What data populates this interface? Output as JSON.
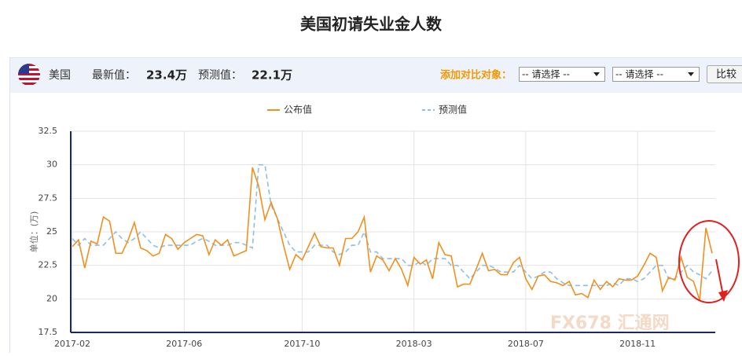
{
  "header": {
    "country": "美国",
    "latest_label": "最新值：",
    "latest_value": "23.4万",
    "forecast_label": "预测值：",
    "forecast_value": "22.1万",
    "compare_label": "添加对比对象：",
    "select_1": "-- 请选择 --",
    "select_2": "-- 请选择 --",
    "button": "比较"
  },
  "watermark": "FX678 汇通网",
  "chart_data": {
    "type": "line",
    "title": "美国初请失业金人数",
    "y_label": "单位：(万)",
    "categories": [
      "2017-02",
      null,
      null,
      null,
      null,
      null,
      null,
      null,
      null,
      null,
      null,
      null,
      null,
      null,
      null,
      null,
      null,
      null,
      "2017-06",
      null,
      null,
      null,
      null,
      null,
      null,
      null,
      null,
      null,
      null,
      null,
      null,
      null,
      null,
      null,
      null,
      null,
      null,
      "2017-10",
      null,
      null,
      null,
      null,
      null,
      null,
      null,
      null,
      null,
      null,
      null,
      null,
      null,
      null,
      null,
      null,
      null,
      "2018-03",
      null,
      null,
      null,
      null,
      null,
      null,
      null,
      null,
      null,
      null,
      null,
      null,
      null,
      null,
      null,
      null,
      null,
      "2018-07",
      null,
      null,
      null,
      null,
      null,
      null,
      null,
      null,
      null,
      null,
      null,
      null,
      null,
      null,
      null,
      null,
      null,
      "2018-11",
      null,
      null,
      null,
      null,
      null,
      null,
      null,
      null,
      null,
      null,
      null,
      null
    ],
    "series": [
      {
        "name": "公布值",
        "color": "#f0901e",
        "dashed": false,
        "values": [
          23.9,
          24.4,
          22.3,
          24.3,
          24.1,
          26.1,
          25.8,
          23.4,
          23.4,
          24.4,
          25.7,
          23.8,
          23.6,
          23.2,
          23.4,
          24.8,
          24.5,
          23.7,
          24.2,
          24.5,
          24.8,
          24.7,
          23.3,
          24.4,
          24.0,
          24.4,
          23.2,
          23.4,
          23.6,
          29.8,
          28.4,
          25.9,
          27.2,
          26.0,
          24.0,
          22.2,
          23.3,
          22.9,
          23.9,
          24.9,
          23.9,
          23.8,
          23.8,
          22.5,
          24.5,
          24.5,
          25.0,
          26.1,
          22.0,
          23.2,
          22.9,
          22.1,
          23.0,
          22.2,
          21.0,
          23.1,
          22.6,
          22.9,
          21.5,
          24.2,
          23.3,
          23.2,
          20.9,
          21.1,
          21.1,
          22.2,
          23.4,
          22.1,
          22.2,
          21.8,
          21.8,
          22.7,
          23.1,
          21.5,
          20.7,
          21.7,
          21.8,
          21.3,
          21.2,
          21.0,
          21.3,
          20.3,
          20.4,
          20.1,
          21.4,
          20.7,
          21.3,
          20.9,
          21.5,
          21.4,
          21.4,
          21.7,
          22.5,
          23.4,
          23.1,
          20.6,
          21.6,
          21.4,
          23.1,
          21.6,
          21.3,
          19.9,
          25.3,
          23.4
        ]
      },
      {
        "name": "预测值",
        "color": "#8dbfe8",
        "dashed": true,
        "values": [
          24.5,
          24.0,
          24.5,
          24.0,
          24.0,
          24.0,
          24.5,
          25.0,
          24.5,
          24.2,
          24.5,
          25.0,
          24.5,
          24.0,
          23.8,
          24.0,
          24.0,
          24.0,
          24.0,
          24.0,
          24.3,
          24.5,
          24.3,
          24.0,
          24.0,
          24.0,
          24.2,
          24.2,
          24.0,
          23.8,
          30.0,
          30.0,
          27.0,
          26.0,
          25.0,
          24.0,
          23.5,
          23.5,
          23.5,
          24.0,
          24.0,
          24.0,
          23.5,
          23.3,
          23.5,
          24.0,
          24.0,
          25.0,
          23.5,
          23.5,
          23.0,
          23.0,
          23.0,
          23.0,
          22.5,
          22.5,
          22.8,
          22.5,
          23.0,
          23.0,
          23.0,
          22.5,
          22.5,
          22.0,
          21.5,
          22.0,
          22.5,
          22.5,
          22.3,
          22.0,
          22.0,
          22.0,
          22.5,
          22.0,
          21.5,
          21.7,
          22.0,
          22.0,
          21.5,
          21.2,
          21.0,
          21.0,
          21.0,
          21.0,
          21.0,
          21.0,
          21.0,
          21.2,
          21.0,
          21.5,
          21.5,
          21.3,
          21.5,
          22.0,
          22.5,
          22.5,
          21.5,
          21.5,
          22.0,
          22.5,
          22.0,
          21.8,
          21.5,
          22.1
        ]
      }
    ],
    "ylim": [
      17.5,
      32.5
    ],
    "yticks": [
      17.5,
      20,
      22.5,
      25,
      27.5,
      30,
      32.5
    ],
    "grid": true
  }
}
